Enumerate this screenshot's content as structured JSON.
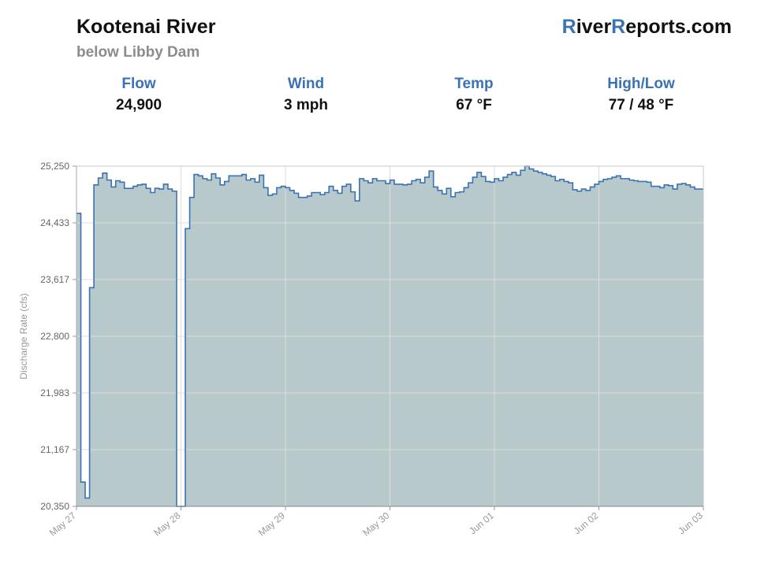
{
  "header": {
    "river_name": "Kootenai River",
    "location": "below Libby Dam",
    "logo_r1": "R",
    "logo_mid": "iver",
    "logo_r2": "R",
    "logo_end": "eports.com",
    "accent_color": "#3a72b4"
  },
  "stats": [
    {
      "label": "Flow",
      "value": "24,900"
    },
    {
      "label": "Wind",
      "value": "3 mph"
    },
    {
      "label": "Temp",
      "value": "67 °F"
    },
    {
      "label": "High/Low",
      "value": "77 / 48 °F"
    }
  ],
  "chart_data": {
    "type": "area",
    "ylabel": "Discharge Rate (cfs)",
    "ylim": [
      20350,
      25250
    ],
    "yticks": [
      20350,
      21167,
      21983,
      22800,
      23617,
      24433,
      25250
    ],
    "ytick_labels": [
      "20,350",
      "21,167",
      "21,983",
      "22,800",
      "23,617",
      "24,433",
      "25,250"
    ],
    "xlim": [
      "May 27",
      "Jun 03"
    ],
    "xtick_labels": [
      "May 27",
      "May 28",
      "May 29",
      "May 30",
      "Jun 01",
      "Jun 02",
      "Jun 03"
    ],
    "grid": true,
    "line_color": "#3a72b4",
    "fill_color": "#b8c9cb",
    "series": [
      {
        "step": "hourly",
        "values": [
          24570,
          20700,
          20470,
          23500,
          24980,
          25080,
          25150,
          25050,
          24950,
          25040,
          25020,
          24930,
          24930,
          24960,
          24980,
          24990,
          24930,
          24870,
          24930,
          24920,
          24990,
          24920,
          24890,
          20350,
          20350,
          24350,
          24800,
          25130,
          25110,
          25070,
          25050,
          25140,
          25080,
          24980,
          25030,
          25110,
          25110,
          25110,
          25130,
          25050,
          25070,
          25020,
          25120,
          24940,
          24830,
          24850,
          24940,
          24960,
          24940,
          24900,
          24860,
          24800,
          24800,
          24820,
          24870,
          24870,
          24840,
          24870,
          24960,
          24900,
          24860,
          24960,
          24990,
          24880,
          24750,
          25070,
          25040,
          25010,
          25070,
          25040,
          25040,
          25000,
          25050,
          24990,
          24990,
          24980,
          24990,
          25040,
          25060,
          25010,
          25090,
          25180,
          24950,
          24900,
          24850,
          24930,
          24810,
          24870,
          24880,
          24940,
          25010,
          25090,
          25160,
          25100,
          25030,
          25020,
          25070,
          25040,
          25090,
          25130,
          25160,
          25120,
          25190,
          25250,
          25210,
          25180,
          25160,
          25140,
          25120,
          25100,
          25040,
          25060,
          25030,
          25010,
          24910,
          24890,
          24920,
          24900,
          24950,
          24990,
          25030,
          25060,
          25070,
          25090,
          25110,
          25070,
          25070,
          25050,
          25040,
          25030,
          25030,
          25020,
          24960,
          24960,
          24940,
          24980,
          24970,
          24920,
          24990,
          25000,
          24980,
          24950,
          24920,
          24920
        ]
      }
    ]
  }
}
